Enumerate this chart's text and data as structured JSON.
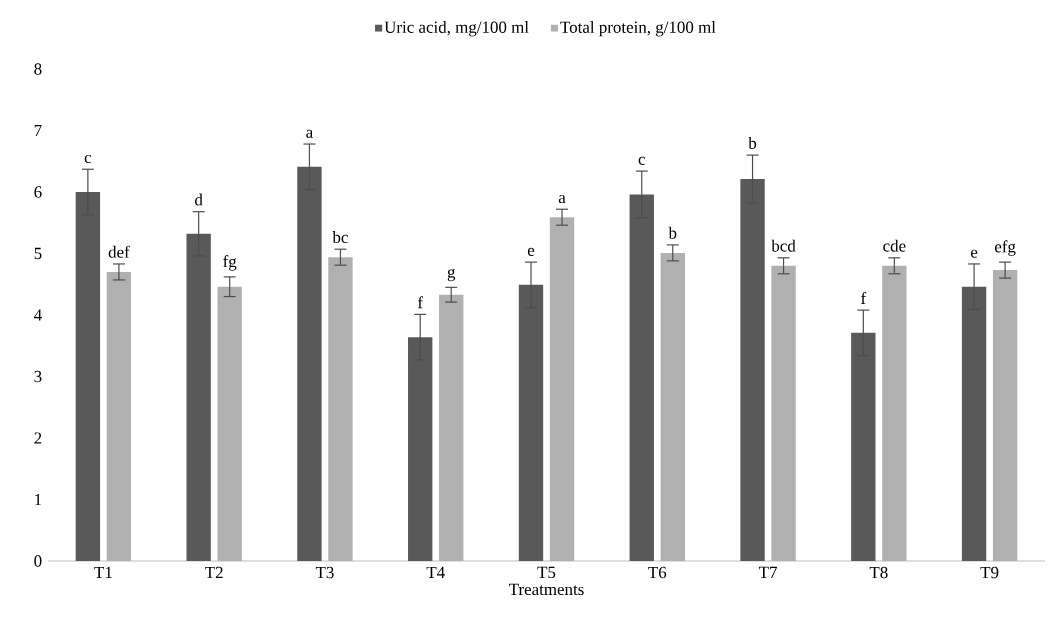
{
  "chart_data": {
    "type": "bar",
    "xlabel": "Treatments",
    "categories": [
      "T1",
      "T2",
      "T3",
      "T4",
      "T5",
      "T6",
      "T7",
      "T8",
      "T9"
    ],
    "series": [
      {
        "name": "Uric acid, mg/100 ml",
        "color": "#595959",
        "values": [
          6.0,
          5.32,
          6.41,
          3.64,
          4.49,
          5.96,
          6.21,
          3.71,
          4.46
        ],
        "errors": [
          0.37,
          0.36,
          0.37,
          0.37,
          0.37,
          0.38,
          0.39,
          0.37,
          0.37
        ],
        "value_labels": [
          "c",
          "d",
          "a",
          "f",
          "e",
          "c",
          "b",
          "f",
          "e"
        ]
      },
      {
        "name": "Total protein, g/100 ml",
        "color": "#b0b0b0",
        "values": [
          4.7,
          4.46,
          4.94,
          4.33,
          5.59,
          5.01,
          4.8,
          4.8,
          4.73
        ],
        "errors": [
          0.13,
          0.16,
          0.13,
          0.12,
          0.13,
          0.13,
          0.13,
          0.13,
          0.13
        ],
        "value_labels": [
          "def",
          "fg",
          "bc",
          "g",
          "a",
          "b",
          "bcd",
          "cde",
          "efg"
        ]
      }
    ],
    "ylim": [
      0,
      8
    ],
    "yticks": [
      0,
      1,
      2,
      3,
      4,
      5,
      6,
      7,
      8
    ],
    "legend": "top"
  }
}
